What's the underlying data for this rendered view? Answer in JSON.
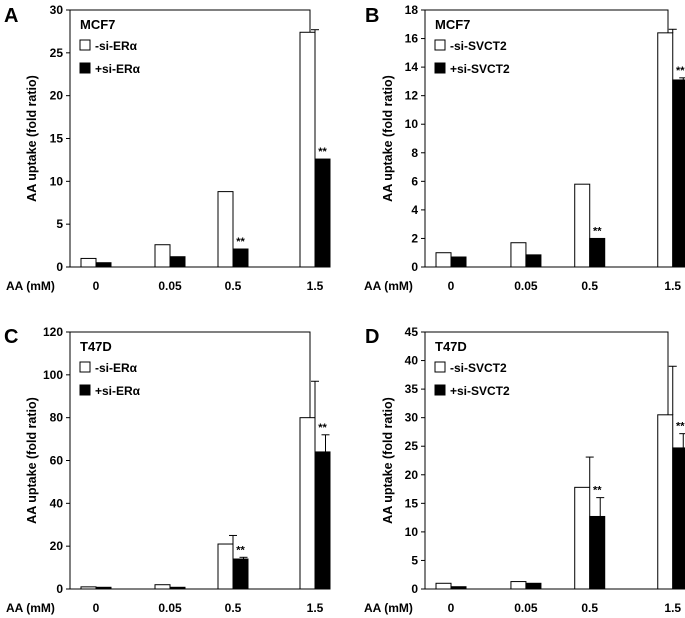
{
  "chart_data": [
    {
      "type": "bar",
      "panel": "A",
      "title": "MCF7",
      "xlabel": "AA (mM)",
      "ylabel": "AA uptake (fold ratio)",
      "categories": [
        "0",
        "0.05",
        "0.5",
        "1.5"
      ],
      "ylim": [
        0,
        30
      ],
      "yticks": [
        0,
        5,
        10,
        15,
        20,
        25,
        30
      ],
      "series": [
        {
          "name": "-si-ERα",
          "fill": "#ffffff",
          "values": [
            1.0,
            2.6,
            8.8,
            27.4
          ],
          "errors": [
            0,
            0,
            0,
            0.3
          ]
        },
        {
          "name": "+si-ERα",
          "fill": "#000000",
          "values": [
            0.5,
            1.2,
            2.1,
            12.6
          ],
          "errors": [
            0,
            0,
            0,
            0
          ]
        }
      ],
      "significance": [
        {
          "category": "0.5",
          "label": "**"
        },
        {
          "category": "1.5",
          "label": "**"
        }
      ]
    },
    {
      "type": "bar",
      "panel": "B",
      "title": "MCF7",
      "xlabel": "AA (mM)",
      "ylabel": "AA uptake (fold ratio)",
      "categories": [
        "0",
        "0.05",
        "0.5",
        "1.5"
      ],
      "ylim": [
        0,
        18
      ],
      "yticks": [
        0,
        2,
        4,
        6,
        8,
        10,
        12,
        14,
        16,
        18
      ],
      "series": [
        {
          "name": "-si-SVCT2",
          "fill": "#ffffff",
          "values": [
            1.0,
            1.7,
            5.8,
            16.4
          ],
          "errors": [
            0,
            0,
            0,
            0.25
          ]
        },
        {
          "name": "+si-SVCT2",
          "fill": "#000000",
          "values": [
            0.7,
            0.85,
            2.0,
            13.1
          ],
          "errors": [
            0,
            0,
            0,
            0.15
          ]
        }
      ],
      "significance": [
        {
          "category": "0.5",
          "label": "**"
        },
        {
          "category": "1.5",
          "label": "**"
        }
      ]
    },
    {
      "type": "bar",
      "panel": "C",
      "title": "T47D",
      "xlabel": "AA (mM)",
      "ylabel": "AA uptake (fold ratio)",
      "categories": [
        "0",
        "0.05",
        "0.5",
        "1.5"
      ],
      "ylim": [
        0,
        120
      ],
      "yticks": [
        0,
        20,
        40,
        60,
        80,
        100,
        120
      ],
      "series": [
        {
          "name": "-si-ERα",
          "fill": "#ffffff",
          "values": [
            1.0,
            2.0,
            21.0,
            80.0
          ],
          "errors": [
            0,
            0,
            4.0,
            17.0
          ]
        },
        {
          "name": "+si-ERα",
          "fill": "#000000",
          "values": [
            0.8,
            0.8,
            14.0,
            64.0
          ],
          "errors": [
            0,
            0,
            0.8,
            8.0
          ]
        }
      ],
      "significance": [
        {
          "category": "0.5",
          "label": "**"
        },
        {
          "category": "1.5",
          "label": "**"
        }
      ]
    },
    {
      "type": "bar",
      "panel": "D",
      "title": "T47D",
      "xlabel": "AA (mM)",
      "ylabel": "AA uptake (fold ratio)",
      "categories": [
        "0",
        "0.05",
        "0.5",
        "1.5"
      ],
      "ylim": [
        0,
        45
      ],
      "yticks": [
        0,
        5,
        10,
        15,
        20,
        25,
        30,
        35,
        40,
        45
      ],
      "series": [
        {
          "name": "-si-SVCT2",
          "fill": "#ffffff",
          "values": [
            1.0,
            1.3,
            17.8,
            30.5
          ],
          "errors": [
            0,
            0,
            5.3,
            8.5
          ]
        },
        {
          "name": "+si-SVCT2",
          "fill": "#000000",
          "values": [
            0.4,
            1.0,
            12.7,
            24.7
          ],
          "errors": [
            0,
            0,
            3.3,
            2.5
          ]
        }
      ],
      "significance": [
        {
          "category": "0.5",
          "label": "**"
        },
        {
          "category": "1.5",
          "label": "**"
        }
      ]
    }
  ]
}
